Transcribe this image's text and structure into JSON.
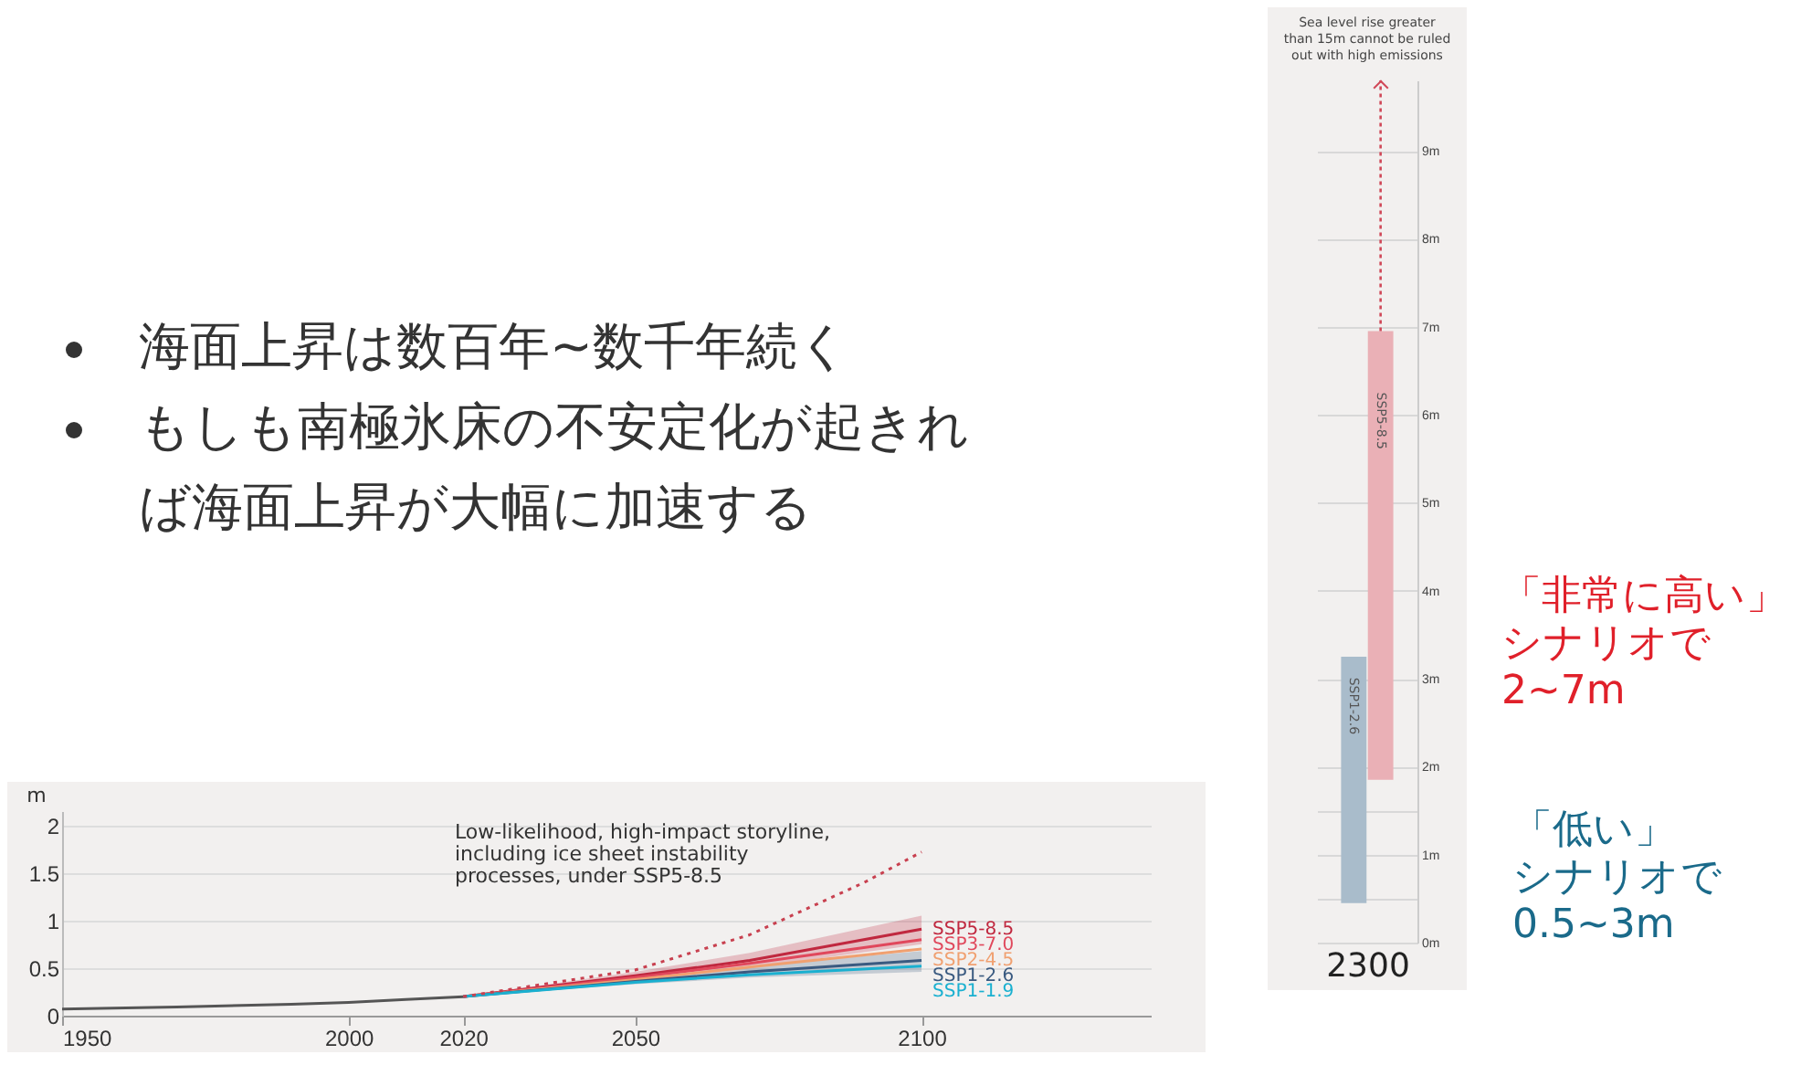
{
  "chart_data": [
    {
      "type": "line",
      "ylabel": "m",
      "x": [
        1950,
        1970,
        1990,
        2000,
        2010,
        2020
      ],
      "xlim": [
        1950,
        2140
      ],
      "xticks": [
        1950,
        2000,
        2020,
        2050,
        2100
      ],
      "ylim": [
        0,
        2.15
      ],
      "yticks": [
        0,
        0.5,
        1,
        1.5,
        2
      ],
      "grid": "y",
      "series": [
        {
          "color": "#555555",
          "values": [
            0.07,
            0.09,
            0.12,
            0.14,
            0.17,
            0.2
          ]
        },
        {
          "name": "SSP5-8.5",
          "color": "#c0283f",
          "x": [
            2020,
            2050,
            2070,
            2100
          ],
          "values": [
            0.2,
            0.42,
            0.58,
            0.91
          ],
          "lower": [
            0.2,
            0.38,
            0.5,
            0.75
          ],
          "upper": [
            0.2,
            0.46,
            0.66,
            1.05
          ]
        },
        {
          "name": "SSP3-7.0",
          "color": "#e0485c",
          "x": [
            2020,
            2050,
            2070,
            2100
          ],
          "values": [
            0.2,
            0.4,
            0.55,
            0.8
          ]
        },
        {
          "name": "SSP2-4.5",
          "color": "#f0a070",
          "x": [
            2020,
            2050,
            2070,
            2100
          ],
          "values": [
            0.2,
            0.38,
            0.51,
            0.7
          ]
        },
        {
          "name": "SSP1-2.6",
          "color": "#3a5a80",
          "x": [
            2020,
            2050,
            2070,
            2100
          ],
          "values": [
            0.2,
            0.36,
            0.46,
            0.58
          ],
          "lower": [
            0.2,
            0.33,
            0.4,
            0.46
          ],
          "upper": [
            0.2,
            0.39,
            0.52,
            0.68
          ]
        },
        {
          "name": "SSP1-1.9",
          "color": "#1ab0d0",
          "x": [
            2020,
            2050,
            2070,
            2100
          ],
          "values": [
            0.2,
            0.35,
            0.43,
            0.52
          ]
        },
        {
          "color": "#c8404f",
          "line_style": "dotted",
          "x": [
            2020,
            2050,
            2070,
            2090,
            2100
          ],
          "values": [
            0.2,
            0.48,
            0.85,
            1.4,
            1.72
          ]
        }
      ],
      "annotations": [
        "Low-likelihood, high-impact storyline, including ice sheet instability processes, under SSP5-8.5",
        "海面上昇は数百年~数千年続く",
        "もしも南極氷床の不安定化が起きれば海面上昇が大幅に加速する"
      ]
    },
    {
      "type": "bar",
      "title": "Sea level rise greater than 15m cannot be ruled out with high emissions",
      "xlabel": "2300",
      "categories": [
        "SSP1-2.6",
        "SSP5-8.5"
      ],
      "base": [
        0.45,
        1.85
      ],
      "values": [
        2.8,
        5.1
      ],
      "colors": [
        "#a9bccb",
        "#eab0b6"
      ],
      "errors": [
        null,
        [
          6.95,
          9.8
        ]
      ],
      "ylim": [
        0,
        9.8
      ],
      "yticks": [
        {
          "value": 0,
          "label": "0m"
        },
        {
          "value": 0.5,
          "label": null
        },
        {
          "value": 1,
          "label": "1m"
        },
        {
          "value": 1.5,
          "label": null
        },
        {
          "value": 2,
          "label": "2m"
        },
        {
          "value": 3,
          "label": "3m"
        },
        {
          "value": 4,
          "label": "4m"
        },
        {
          "value": 5,
          "label": "5m"
        },
        {
          "value": 6,
          "label": "6m"
        },
        {
          "value": 7,
          "label": "7m"
        },
        {
          "value": 8,
          "label": "8m"
        },
        {
          "value": 9,
          "label": "9m"
        }
      ],
      "grid": true,
      "tick_labels": "y",
      "annotations": [
        "「非常に高い」",
        "シナリオで",
        "2~7m",
        "「低い」",
        "シナリオで",
        "0.5~3m"
      ]
    }
  ]
}
